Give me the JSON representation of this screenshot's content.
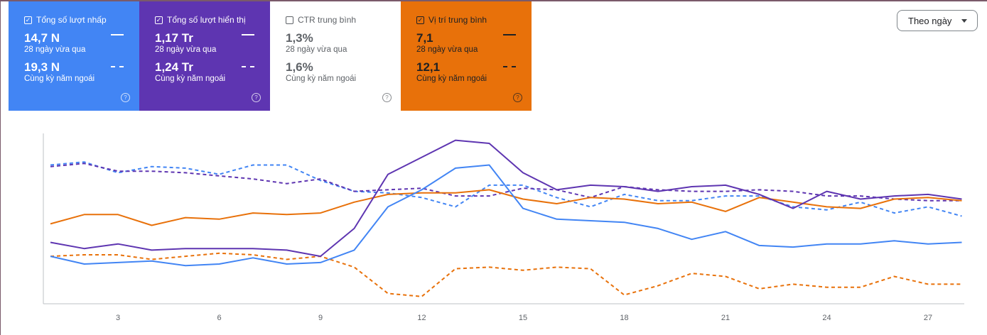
{
  "cards": [
    {
      "title": "Tổng số lượt nhấp",
      "checked": true,
      "value1": "14,7 N",
      "label1": "28 ngày vừa qua",
      "value2": "19,3 N",
      "label2": "Cùng kỳ năm ngoái"
    },
    {
      "title": "Tổng số lượt hiển thị",
      "checked": true,
      "value1": "1,17 Tr",
      "label1": "28 ngày vừa qua",
      "value2": "1,24 Tr",
      "label2": "Cùng kỳ năm ngoái"
    },
    {
      "title": "CTR trung bình",
      "checked": false,
      "value1": "1,3%",
      "label1": "28 ngày vừa qua",
      "value2": "1,6%",
      "label2": "Cùng kỳ năm ngoái"
    },
    {
      "title": "Vị trí trung bình",
      "checked": true,
      "value1": "7,1",
      "label1": "28 ngày vừa qua",
      "value2": "12,1",
      "label2": "Cùng kỳ năm ngoái"
    }
  ],
  "help_glyph": "?",
  "check_glyph": "✓",
  "dropdown": {
    "label": "Theo ngày"
  },
  "colors": {
    "clicks": "#4285f4",
    "impressions": "#5e35b1",
    "position": "#e8710a"
  },
  "chart_data": {
    "type": "line",
    "x": [
      1,
      2,
      3,
      4,
      5,
      6,
      7,
      8,
      9,
      10,
      11,
      12,
      13,
      14,
      15,
      16,
      17,
      18,
      19,
      20,
      21,
      22,
      23,
      24,
      25,
      26,
      27,
      28
    ],
    "xticks": [
      "3",
      "6",
      "9",
      "12",
      "15",
      "18",
      "21",
      "24",
      "27"
    ],
    "xtick_values": [
      3,
      6,
      9,
      12,
      15,
      18,
      21,
      24,
      27
    ],
    "y_scale_note": "relative (axis unlabeled), 0-100",
    "ylim": [
      0,
      100
    ],
    "series": [
      {
        "key": "clicks",
        "style": "solid",
        "values": [
          27,
          22,
          23,
          24,
          21,
          22,
          26,
          22,
          23,
          31,
          59,
          70,
          84,
          86,
          58,
          51,
          50,
          49,
          45,
          38,
          43,
          34,
          33,
          35,
          35,
          37,
          35,
          36
        ]
      },
      {
        "key": "clicks_prev",
        "style": "dashed",
        "values": [
          86,
          88,
          81,
          85,
          84,
          80,
          86,
          86,
          76,
          69,
          68,
          65,
          59,
          73,
          73,
          65,
          59,
          67,
          63,
          63,
          66,
          66,
          59,
          57,
          62,
          55,
          59,
          53
        ]
      },
      {
        "key": "impressions",
        "style": "solid",
        "values": [
          36,
          32,
          35,
          31,
          32,
          32,
          32,
          31,
          27,
          45,
          80,
          91,
          102,
          100,
          81,
          70,
          73,
          72,
          69,
          72,
          73,
          67,
          58,
          69,
          64,
          66,
          67,
          64
        ]
      },
      {
        "key": "impressions_prev",
        "style": "dashed",
        "values": [
          85,
          87,
          82,
          82,
          81,
          79,
          77,
          74,
          77,
          69,
          70,
          71,
          66,
          66,
          71,
          70,
          65,
          72,
          70,
          69,
          69,
          70,
          69,
          66,
          66,
          64,
          63,
          63
        ]
      },
      {
        "key": "position",
        "style": "solid",
        "values": [
          48,
          54,
          54,
          47,
          52,
          51,
          55,
          54,
          55,
          62,
          67,
          68,
          68,
          70,
          64,
          61,
          65,
          64,
          61,
          62,
          56,
          65,
          62,
          59,
          58,
          64,
          65,
          63
        ]
      },
      {
        "key": "position_prev",
        "style": "dashed",
        "values": [
          27,
          28,
          28,
          25,
          27,
          29,
          28,
          25,
          27,
          20,
          3,
          1,
          19,
          20,
          18,
          20,
          19,
          2,
          8,
          16,
          14,
          6,
          9,
          7,
          7,
          14,
          9,
          9
        ]
      }
    ]
  }
}
